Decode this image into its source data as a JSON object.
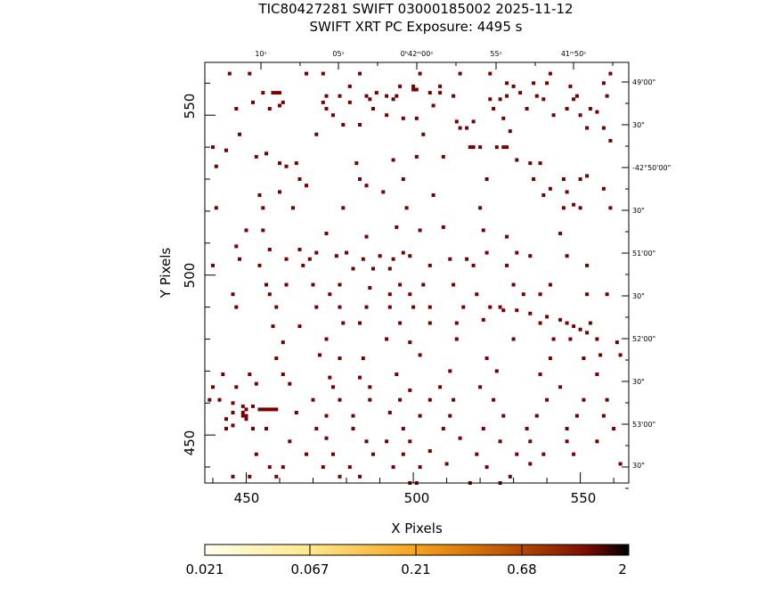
{
  "title": {
    "line1": "TIC80427281 SWIFT 03000185002 2025-11-12",
    "line2": "SWIFT XRT PC Exposure:       4495 s"
  },
  "colors": {
    "event": "#7a0000",
    "frame": "#000000",
    "colorbar_stops": [
      "#ffffee",
      "#ffe88a",
      "#f7a21e",
      "#c45a00",
      "#7a0c00",
      "#000000"
    ]
  },
  "chart_data": {
    "type": "scatter",
    "xlabel": "X Pixels",
    "ylabel": "Y Pixels",
    "xlim": [
      437.6,
      564.5
    ],
    "ylim": [
      435.0,
      566.5
    ],
    "x_ticks": [
      "450",
      "500",
      "550"
    ],
    "y_ticks": [
      "450",
      "500",
      "550"
    ],
    "top_ticks": [
      "10ˢ",
      "05ˢ",
      "0ʰ42ᵐ00ˢ",
      "55ˢ",
      "41ᵐ50ˢ"
    ],
    "right_ticks": [
      "49'00\"",
      "30\"",
      "-42°50'00\"",
      "30\"",
      "51'00\"",
      "30\"",
      "52'00\"",
      "30\"",
      "53'00\"",
      "30\""
    ],
    "colorbar": {
      "ticks": [
        "0.021",
        "0.067",
        "0.21",
        "0.68",
        "2"
      ],
      "scale": "log"
    },
    "points": [
      [
        445,
        563
      ],
      [
        451,
        563
      ],
      [
        468,
        563
      ],
      [
        473,
        563
      ],
      [
        484,
        563
      ],
      [
        502,
        563
      ],
      [
        514,
        563
      ],
      [
        523,
        563
      ],
      [
        541,
        563
      ],
      [
        559,
        563
      ],
      [
        528,
        560
      ],
      [
        536,
        560
      ],
      [
        540,
        560
      ],
      [
        557,
        560
      ],
      [
        481,
        559
      ],
      [
        496,
        559
      ],
      [
        500,
        559
      ],
      [
        508,
        559
      ],
      [
        530,
        559
      ],
      [
        547,
        559
      ],
      [
        458,
        557
      ],
      [
        459,
        557
      ],
      [
        460,
        557
      ],
      [
        455,
        557
      ],
      [
        505,
        557
      ],
      [
        489,
        557
      ],
      [
        508,
        557
      ],
      [
        532,
        557
      ],
      [
        500,
        558
      ],
      [
        501,
        558
      ],
      [
        474,
        556
      ],
      [
        478,
        556
      ],
      [
        486,
        556
      ],
      [
        492,
        556
      ],
      [
        495,
        556
      ],
      [
        537,
        556
      ],
      [
        549,
        556
      ],
      [
        558,
        556
      ],
      [
        523,
        555
      ],
      [
        526,
        555
      ],
      [
        452,
        554
      ],
      [
        461,
        554
      ],
      [
        473,
        554
      ],
      [
        481,
        554
      ],
      [
        487,
        555
      ],
      [
        494,
        555
      ],
      [
        512,
        556
      ],
      [
        528,
        556
      ],
      [
        539,
        555
      ],
      [
        548,
        555
      ],
      [
        447,
        552
      ],
      [
        457,
        552
      ],
      [
        474,
        552
      ],
      [
        488,
        552
      ],
      [
        534,
        552
      ],
      [
        546,
        552
      ],
      [
        553,
        552
      ],
      [
        524,
        552
      ],
      [
        506,
        553
      ],
      [
        460,
        553
      ],
      [
        476,
        550
      ],
      [
        492,
        550
      ],
      [
        497,
        549
      ],
      [
        501,
        549
      ],
      [
        513,
        548
      ],
      [
        518,
        548
      ],
      [
        527,
        549
      ],
      [
        542,
        550
      ],
      [
        550,
        550
      ],
      [
        555,
        551
      ],
      [
        479,
        547
      ],
      [
        484,
        547
      ],
      [
        514,
        546
      ],
      [
        516,
        546
      ],
      [
        529,
        545
      ],
      [
        552,
        546
      ],
      [
        557,
        546
      ],
      [
        448,
        544
      ],
      [
        471,
        544
      ],
      [
        503,
        544
      ],
      [
        440,
        540
      ],
      [
        444,
        539
      ],
      [
        456,
        538
      ],
      [
        517,
        540
      ],
      [
        518,
        540
      ],
      [
        520,
        540
      ],
      [
        525,
        540
      ],
      [
        527,
        540
      ],
      [
        528,
        540
      ],
      [
        559,
        542
      ],
      [
        453,
        537
      ],
      [
        460,
        535
      ],
      [
        465,
        535
      ],
      [
        483,
        535
      ],
      [
        494,
        536
      ],
      [
        501,
        537
      ],
      [
        509,
        537
      ],
      [
        531,
        536
      ],
      [
        535,
        535
      ],
      [
        538,
        535
      ],
      [
        441,
        534
      ],
      [
        462,
        534
      ],
      [
        466,
        530
      ],
      [
        484,
        530
      ],
      [
        497,
        530
      ],
      [
        522,
        530
      ],
      [
        536,
        530
      ],
      [
        545,
        530
      ],
      [
        550,
        530
      ],
      [
        552,
        531
      ],
      [
        454,
        525
      ],
      [
        460,
        526
      ],
      [
        468,
        528
      ],
      [
        486,
        528
      ],
      [
        491,
        526
      ],
      [
        506,
        525
      ],
      [
        541,
        527
      ],
      [
        539,
        525
      ],
      [
        546,
        526
      ],
      [
        557,
        527
      ],
      [
        441,
        521
      ],
      [
        455,
        521
      ],
      [
        464,
        521
      ],
      [
        479,
        521
      ],
      [
        498,
        521
      ],
      [
        520,
        521
      ],
      [
        545,
        521
      ],
      [
        550,
        521
      ],
      [
        559,
        521
      ],
      [
        548,
        522
      ],
      [
        450,
        514
      ],
      [
        455,
        514
      ],
      [
        474,
        513
      ],
      [
        486,
        512
      ],
      [
        495,
        515
      ],
      [
        502,
        514
      ],
      [
        509,
        515
      ],
      [
        521,
        514
      ],
      [
        528,
        512
      ],
      [
        544,
        513
      ],
      [
        447,
        509
      ],
      [
        457,
        508
      ],
      [
        466,
        508
      ],
      [
        471,
        507
      ],
      [
        480,
        507
      ],
      [
        490,
        506
      ],
      [
        497,
        507
      ],
      [
        499,
        506
      ],
      [
        522,
        507
      ],
      [
        531,
        507
      ],
      [
        448,
        505
      ],
      [
        462,
        505
      ],
      [
        469,
        505
      ],
      [
        477,
        506
      ],
      [
        485,
        505
      ],
      [
        494,
        505
      ],
      [
        511,
        505
      ],
      [
        516,
        505
      ],
      [
        535,
        506
      ],
      [
        546,
        506
      ],
      [
        440,
        503
      ],
      [
        454,
        503
      ],
      [
        467,
        503
      ],
      [
        482,
        502
      ],
      [
        488,
        502
      ],
      [
        493,
        502
      ],
      [
        505,
        503
      ],
      [
        518,
        503
      ],
      [
        528,
        503
      ],
      [
        552,
        503
      ],
      [
        456,
        497
      ],
      [
        462,
        497
      ],
      [
        470,
        497
      ],
      [
        478,
        497
      ],
      [
        487,
        496
      ],
      [
        496,
        497
      ],
      [
        503,
        497
      ],
      [
        512,
        497
      ],
      [
        530,
        497
      ],
      [
        541,
        497
      ],
      [
        446,
        494
      ],
      [
        457,
        494
      ],
      [
        475,
        494
      ],
      [
        493,
        494
      ],
      [
        499,
        494
      ],
      [
        519,
        494
      ],
      [
        533,
        494
      ],
      [
        538,
        494
      ],
      [
        552,
        494
      ],
      [
        558,
        494
      ],
      [
        447,
        490
      ],
      [
        459,
        490
      ],
      [
        471,
        490
      ],
      [
        478,
        490
      ],
      [
        486,
        490
      ],
      [
        493,
        490
      ],
      [
        500,
        490
      ],
      [
        505,
        490
      ],
      [
        515,
        490
      ],
      [
        523,
        490
      ],
      [
        526,
        490
      ],
      [
        527,
        489
      ],
      [
        531,
        489
      ],
      [
        535,
        488
      ],
      [
        540,
        487
      ],
      [
        544,
        486
      ],
      [
        546,
        485
      ],
      [
        548,
        484
      ],
      [
        550,
        483
      ],
      [
        552,
        482
      ],
      [
        458,
        484
      ],
      [
        466,
        484
      ],
      [
        479,
        485
      ],
      [
        484,
        485
      ],
      [
        496,
        485
      ],
      [
        505,
        485
      ],
      [
        513,
        485
      ],
      [
        521,
        486
      ],
      [
        538,
        485
      ],
      [
        553,
        485
      ],
      [
        461,
        479
      ],
      [
        474,
        480
      ],
      [
        492,
        480
      ],
      [
        499,
        479
      ],
      [
        513,
        480
      ],
      [
        530,
        480
      ],
      [
        542,
        480
      ],
      [
        547,
        480
      ],
      [
        555,
        480
      ],
      [
        561,
        479
      ],
      [
        459,
        474
      ],
      [
        472,
        475
      ],
      [
        478,
        474
      ],
      [
        485,
        474
      ],
      [
        502,
        475
      ],
      [
        522,
        474
      ],
      [
        541,
        474
      ],
      [
        551,
        474
      ],
      [
        556,
        475
      ],
      [
        562,
        475
      ],
      [
        443,
        469
      ],
      [
        451,
        469
      ],
      [
        461,
        469
      ],
      [
        475,
        468
      ],
      [
        484,
        468
      ],
      [
        495,
        469
      ],
      [
        511,
        470
      ],
      [
        525,
        470
      ],
      [
        538,
        469
      ],
      [
        555,
        469
      ],
      [
        440,
        465
      ],
      [
        447,
        465
      ],
      [
        453,
        466
      ],
      [
        463,
        466
      ],
      [
        476,
        465
      ],
      [
        487,
        465
      ],
      [
        499,
        464
      ],
      [
        508,
        465
      ],
      [
        520,
        465
      ],
      [
        544,
        465
      ],
      [
        439,
        461
      ],
      [
        442,
        461
      ],
      [
        446,
        460
      ],
      [
        449,
        459
      ],
      [
        450,
        458
      ],
      [
        452,
        459
      ],
      [
        454,
        458
      ],
      [
        455,
        458
      ],
      [
        456,
        458
      ],
      [
        457,
        458
      ],
      [
        458,
        458
      ],
      [
        459,
        458
      ],
      [
        449,
        457
      ],
      [
        449,
        456
      ],
      [
        450,
        456
      ],
      [
        450,
        455
      ],
      [
        446,
        457
      ],
      [
        444,
        455
      ],
      [
        446,
        453
      ],
      [
        444,
        452
      ],
      [
        470,
        461
      ],
      [
        478,
        461
      ],
      [
        487,
        461
      ],
      [
        496,
        461
      ],
      [
        505,
        461
      ],
      [
        512,
        461
      ],
      [
        524,
        461
      ],
      [
        540,
        461
      ],
      [
        551,
        461
      ],
      [
        558,
        461
      ],
      [
        465,
        457
      ],
      [
        474,
        456
      ],
      [
        482,
        456
      ],
      [
        493,
        457
      ],
      [
        502,
        456
      ],
      [
        511,
        456
      ],
      [
        527,
        456
      ],
      [
        537,
        456
      ],
      [
        549,
        456
      ],
      [
        557,
        456
      ],
      [
        452,
        452
      ],
      [
        456,
        452
      ],
      [
        471,
        452
      ],
      [
        482,
        452
      ],
      [
        497,
        452
      ],
      [
        509,
        452
      ],
      [
        521,
        452
      ],
      [
        534,
        452
      ],
      [
        546,
        452
      ],
      [
        560,
        452
      ],
      [
        463,
        448
      ],
      [
        474,
        449
      ],
      [
        486,
        448
      ],
      [
        492,
        448
      ],
      [
        499,
        448
      ],
      [
        514,
        449
      ],
      [
        526,
        448
      ],
      [
        535,
        448
      ],
      [
        546,
        448
      ],
      [
        555,
        448
      ],
      [
        453,
        444
      ],
      [
        468,
        444
      ],
      [
        476,
        444
      ],
      [
        488,
        444
      ],
      [
        497,
        444
      ],
      [
        505,
        445
      ],
      [
        519,
        444
      ],
      [
        531,
        444
      ],
      [
        539,
        444
      ],
      [
        548,
        444
      ],
      [
        457,
        440
      ],
      [
        461,
        440
      ],
      [
        473,
        440
      ],
      [
        481,
        440
      ],
      [
        494,
        440
      ],
      [
        502,
        440
      ],
      [
        510,
        441
      ],
      [
        522,
        440
      ],
      [
        535,
        441
      ],
      [
        562,
        441
      ],
      [
        446,
        437
      ],
      [
        451,
        437
      ],
      [
        459,
        437
      ],
      [
        478,
        437
      ],
      [
        484,
        437
      ],
      [
        499,
        435
      ],
      [
        501,
        435
      ],
      [
        517,
        435
      ],
      [
        526,
        435
      ],
      [
        529,
        437
      ]
    ]
  }
}
